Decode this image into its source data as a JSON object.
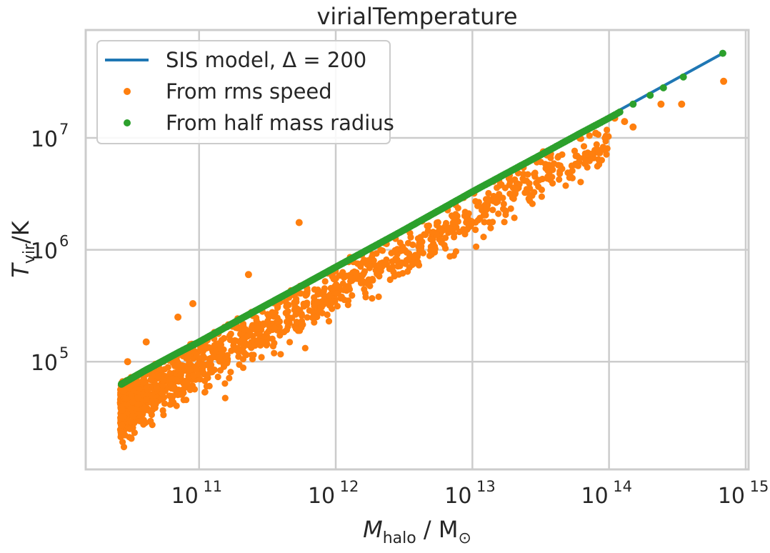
{
  "chart_data": {
    "type": "scatter",
    "title": "virialTemperature",
    "xlabel": {
      "symbol": "M",
      "sub": "halo",
      "units": " / M",
      "units_sub": "⊙"
    },
    "ylabel": {
      "symbol": "T",
      "sub": "vir",
      "units": "/K"
    },
    "xscale": "log",
    "yscale": "log",
    "xlim": [
      14800000000.0,
      1050000000000000.0
    ],
    "ylim": [
      10900.0,
      92000000.0
    ],
    "x_ticks": [
      {
        "base": "10",
        "exp": "11",
        "value": 100000000000.0
      },
      {
        "base": "10",
        "exp": "12",
        "value": 1000000000000.0
      },
      {
        "base": "10",
        "exp": "13",
        "value": 10000000000000.0
      },
      {
        "base": "10",
        "exp": "14",
        "value": 100000000000000.0
      },
      {
        "base": "10",
        "exp": "15",
        "value": 1000000000000000.0
      }
    ],
    "y_ticks": [
      {
        "base": "10",
        "exp": "5",
        "value": 100000.0
      },
      {
        "base": "10",
        "exp": "6",
        "value": 1000000.0
      },
      {
        "base": "10",
        "exp": "7",
        "value": 10000000.0
      }
    ],
    "grid": true,
    "legend_position": "top-left",
    "series": [
      {
        "name": "SIS model, Δ = 200",
        "kind": "line",
        "color": "#1f77b4",
        "x": [
          27000000000.0,
          680000000000000.0
        ],
        "y": [
          63000.0,
          57000000.0
        ]
      },
      {
        "name": "From rms speed",
        "kind": "points",
        "color": "#ff7f0e",
        "outliers": {
          "x": [
            540000000000.0,
            230000000000.0,
            30000000000.0,
            41000000000.0,
            90000000000.0,
            70000000000.0,
            33000000000000.0,
            110000000000000.0,
            150000000000000.0,
            240000000000000.0,
            340000000000000.0,
            690000000000000.0,
            130000000000000.0,
            80000000000000.0
          ],
          "y": [
            1750000.0,
            600000.0,
            100000.0,
            150000.0,
            330000.0,
            250000.0,
            7500000.0,
            15000000.0,
            12500000.0,
            20000000.0,
            20000000.0,
            32000000.0,
            14000000.0,
            11000000.0
          ]
        },
        "band": {
          "x_min": 27000000000.0,
          "x_max": 100000000000000.0,
          "exp_slope": 0.6667,
          "median_ratio": 0.62,
          "scatter_dex": 0.12
        }
      },
      {
        "name": "From half mass radius",
        "kind": "points",
        "color": "#2ca02c",
        "x": [
          27000000000.0,
          40000000000.0,
          70000000000.0,
          100000000000.0,
          200000000000.0,
          500000000000.0,
          1000000000000.0,
          3000000000000.0,
          10000000000000.0,
          30000000000000.0,
          60000000000000.0,
          80000000000000.0,
          110000000000000.0,
          150000000000000.0,
          200000000000000.0,
          250000000000000.0,
          350000000000000.0,
          680000000000000.0
        ],
        "y": [
          63000.0,
          83000.0,
          120000.0,
          150000.0,
          240000.0,
          440000.0,
          700000.0,
          1450000.0,
          3300000.0,
          6800000.0,
          10800000.0,
          13000000.0,
          16000000.0,
          20000000.0,
          24000000.0,
          28000000.0,
          35000000.0,
          57000000.0
        ]
      }
    ]
  }
}
